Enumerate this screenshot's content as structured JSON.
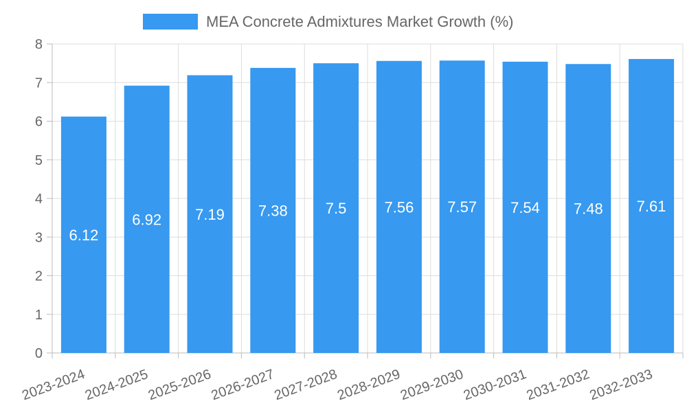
{
  "chart_data": {
    "type": "bar",
    "title": "",
    "xlabel": "",
    "ylabel": "",
    "categories": [
      "2023-2024",
      "2024-2025",
      "2025-2026",
      "2026-2027",
      "2027-2028",
      "2028-2029",
      "2029-2030",
      "2030-2031",
      "2031-2032",
      "2032-2033"
    ],
    "series": [
      {
        "name": "MEA Concrete Admixtures Market Growth (%)",
        "values": [
          6.12,
          6.92,
          7.19,
          7.38,
          7.5,
          7.56,
          7.57,
          7.54,
          7.48,
          7.61
        ],
        "color": "#3799f0"
      }
    ],
    "ylim": [
      0,
      8
    ],
    "yticks": [
      "0",
      "1",
      "2",
      "3",
      "4",
      "5",
      "6",
      "7",
      "8"
    ],
    "grid": true,
    "legend_position": "top-center"
  }
}
